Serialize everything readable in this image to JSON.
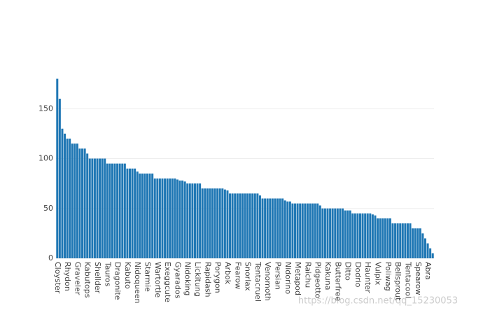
{
  "chart_data": {
    "type": "bar",
    "categories": [
      "Cloyster",
      null,
      null,
      null,
      "Rhydon",
      null,
      null,
      null,
      "Graveler",
      null,
      null,
      null,
      "Kabutops",
      null,
      null,
      null,
      "Shellder",
      null,
      null,
      null,
      "Tauros",
      null,
      null,
      null,
      "Dragonite",
      null,
      null,
      null,
      "Kabuto",
      null,
      null,
      null,
      "Nidoqueen",
      null,
      null,
      null,
      "Starmie",
      null,
      null,
      null,
      "Wartortle",
      null,
      null,
      null,
      "Exeggcute",
      null,
      null,
      null,
      "Gyarados",
      null,
      null,
      null,
      "Nidoking",
      null,
      null,
      null,
      "Lickitung",
      null,
      null,
      null,
      "Rapidash",
      null,
      null,
      null,
      "Porygon",
      null,
      null,
      null,
      "Arbok",
      null,
      null,
      null,
      "Fearow",
      null,
      null,
      null,
      "Snorlax",
      null,
      null,
      null,
      "Tentacruel",
      null,
      null,
      null,
      "Venomoth",
      null,
      null,
      null,
      "Persian",
      null,
      null,
      null,
      "Nidorino",
      null,
      null,
      null,
      "Metapod",
      null,
      null,
      null,
      "Raichu",
      null,
      null,
      null,
      "Pidgeotto",
      null,
      null,
      null,
      "Kakuna",
      null,
      null,
      null,
      "Butterfree",
      null,
      null,
      null,
      "Ditto",
      null,
      null,
      null,
      "Dodrio",
      null,
      null,
      null,
      "Haunter",
      null,
      null,
      null,
      "Vulpix",
      null,
      null,
      null,
      "Poliwag",
      null,
      null,
      null,
      "Bellsprout",
      null,
      null,
      null,
      "Tentacool",
      null,
      null,
      null,
      "Spearow",
      null,
      null,
      null,
      "Abra",
      null,
      null
    ],
    "values": [
      180,
      160,
      130,
      125,
      120,
      120,
      115,
      115,
      115,
      110,
      110,
      110,
      105,
      100,
      100,
      100,
      100,
      100,
      100,
      100,
      95,
      95,
      95,
      95,
      95,
      95,
      95,
      95,
      90,
      90,
      90,
      90,
      87,
      85,
      85,
      85,
      85,
      85,
      85,
      80,
      80,
      80,
      80,
      80,
      80,
      80,
      80,
      80,
      79,
      78,
      78,
      77,
      75,
      75,
      75,
      75,
      75,
      75,
      70,
      70,
      70,
      70,
      70,
      70,
      70,
      70,
      70,
      69,
      68,
      65,
      65,
      65,
      65,
      65,
      65,
      65,
      65,
      65,
      65,
      65,
      65,
      63,
      60,
      60,
      60,
      60,
      60,
      60,
      60,
      60,
      60,
      58,
      57,
      57,
      55,
      55,
      55,
      55,
      55,
      55,
      55,
      55,
      55,
      55,
      55,
      53,
      50,
      50,
      50,
      50,
      50,
      50,
      50,
      50,
      50,
      48,
      48,
      48,
      45,
      45,
      45,
      45,
      45,
      45,
      45,
      45,
      44,
      43,
      40,
      40,
      40,
      40,
      40,
      40,
      35,
      35,
      35,
      35,
      35,
      35,
      35,
      35,
      30,
      30,
      30,
      30,
      25,
      20,
      15,
      10,
      5
    ],
    "color": "#1f77b4",
    "ylim": [
      0,
      189.5
    ],
    "yticks": [
      0,
      50,
      100,
      150
    ],
    "grid": true,
    "watermark": "https://blog.csdn.net/qq_15230053"
  }
}
